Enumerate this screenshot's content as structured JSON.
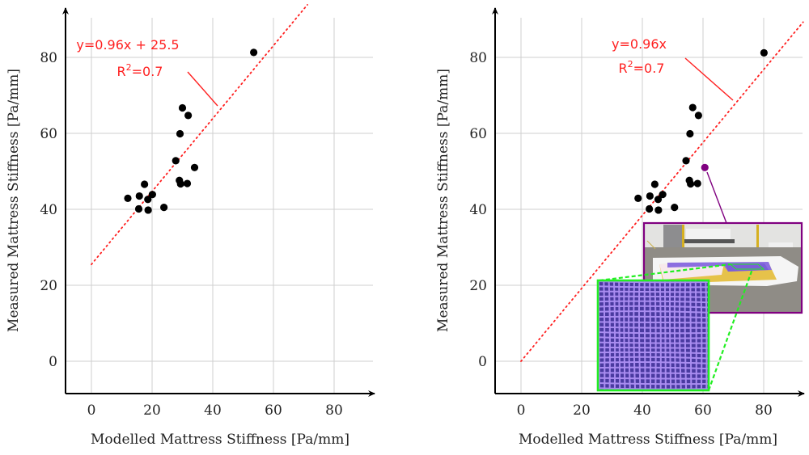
{
  "chart_data": [
    {
      "type": "scatter",
      "panel": "left",
      "xlabel": "Modelled Mattress Stiffness [Pa/mm]",
      "ylabel": "Measured Mattress Stiffness [Pa/mm]",
      "xlim": [
        -8.5,
        93
      ],
      "ylim": [
        -8.5,
        93
      ],
      "xticks": [
        0,
        20,
        40,
        60,
        80
      ],
      "yticks": [
        0,
        20,
        40,
        60,
        80
      ],
      "grid": true,
      "marker_color": "#000000",
      "points": [
        {
          "x": 53.5,
          "y": 81.3
        },
        {
          "x": 30.0,
          "y": 66.7
        },
        {
          "x": 31.9,
          "y": 64.7
        },
        {
          "x": 29.2,
          "y": 59.9
        },
        {
          "x": 27.8,
          "y": 52.8
        },
        {
          "x": 34.0,
          "y": 51.0
        },
        {
          "x": 29.0,
          "y": 47.6
        },
        {
          "x": 29.4,
          "y": 46.7
        },
        {
          "x": 31.6,
          "y": 46.8
        },
        {
          "x": 17.5,
          "y": 46.6
        },
        {
          "x": 12.0,
          "y": 42.9
        },
        {
          "x": 15.8,
          "y": 43.5
        },
        {
          "x": 18.6,
          "y": 42.6
        },
        {
          "x": 20.1,
          "y": 43.9
        },
        {
          "x": 15.6,
          "y": 40.1
        },
        {
          "x": 18.7,
          "y": 39.8
        },
        {
          "x": 23.9,
          "y": 40.5
        }
      ],
      "fit": {
        "slope": 0.96,
        "intercept": 25.5,
        "x_start": 0,
        "x_end": 71.2,
        "color": "#ff2020",
        "style": "dotted"
      },
      "annotation": {
        "equation": "y=0.96x + 25.5",
        "r2_prefix": "R",
        "r2_sup": "2",
        "r2_suffix": "=0.7"
      }
    },
    {
      "type": "scatter",
      "panel": "right",
      "xlabel": "Modelled Mattress Stiffness [Pa/mm]",
      "ylabel": "Measured Mattress Stiffness [Pa/mm]",
      "xlim": [
        -8.5,
        93
      ],
      "ylim": [
        -8.5,
        93
      ],
      "xticks": [
        0,
        20,
        40,
        60,
        80
      ],
      "yticks": [
        0,
        20,
        40,
        60,
        80
      ],
      "grid": true,
      "marker_color": "#000000",
      "highlight_color": "#800080",
      "points": [
        {
          "x": 80.1,
          "y": 81.2
        },
        {
          "x": 56.6,
          "y": 66.8
        },
        {
          "x": 58.5,
          "y": 64.7
        },
        {
          "x": 55.7,
          "y": 59.9
        },
        {
          "x": 54.4,
          "y": 52.8
        },
        {
          "x": 60.6,
          "y": 51.0,
          "highlight": true
        },
        {
          "x": 55.5,
          "y": 47.6
        },
        {
          "x": 55.9,
          "y": 46.7
        },
        {
          "x": 58.2,
          "y": 46.8
        },
        {
          "x": 44.1,
          "y": 46.6
        },
        {
          "x": 38.6,
          "y": 42.9
        },
        {
          "x": 42.5,
          "y": 43.5
        },
        {
          "x": 45.2,
          "y": 42.6
        },
        {
          "x": 46.7,
          "y": 43.9
        },
        {
          "x": 42.3,
          "y": 40.1
        },
        {
          "x": 45.3,
          "y": 39.8
        },
        {
          "x": 50.6,
          "y": 40.5
        }
      ],
      "fit": {
        "slope": 0.96,
        "intercept": 0,
        "x_start": 0,
        "x_end": 93,
        "color": "#ff2020",
        "style": "dotted"
      },
      "annotation": {
        "equation": "y=0.96x",
        "r2_prefix": "R",
        "r2_sup": "2",
        "r2_suffix": "=0.7"
      },
      "inset": {
        "photo_border_color": "#800080",
        "zoom_border_color": "#22ee22",
        "grid_color": "#a98cf0"
      }
    }
  ]
}
